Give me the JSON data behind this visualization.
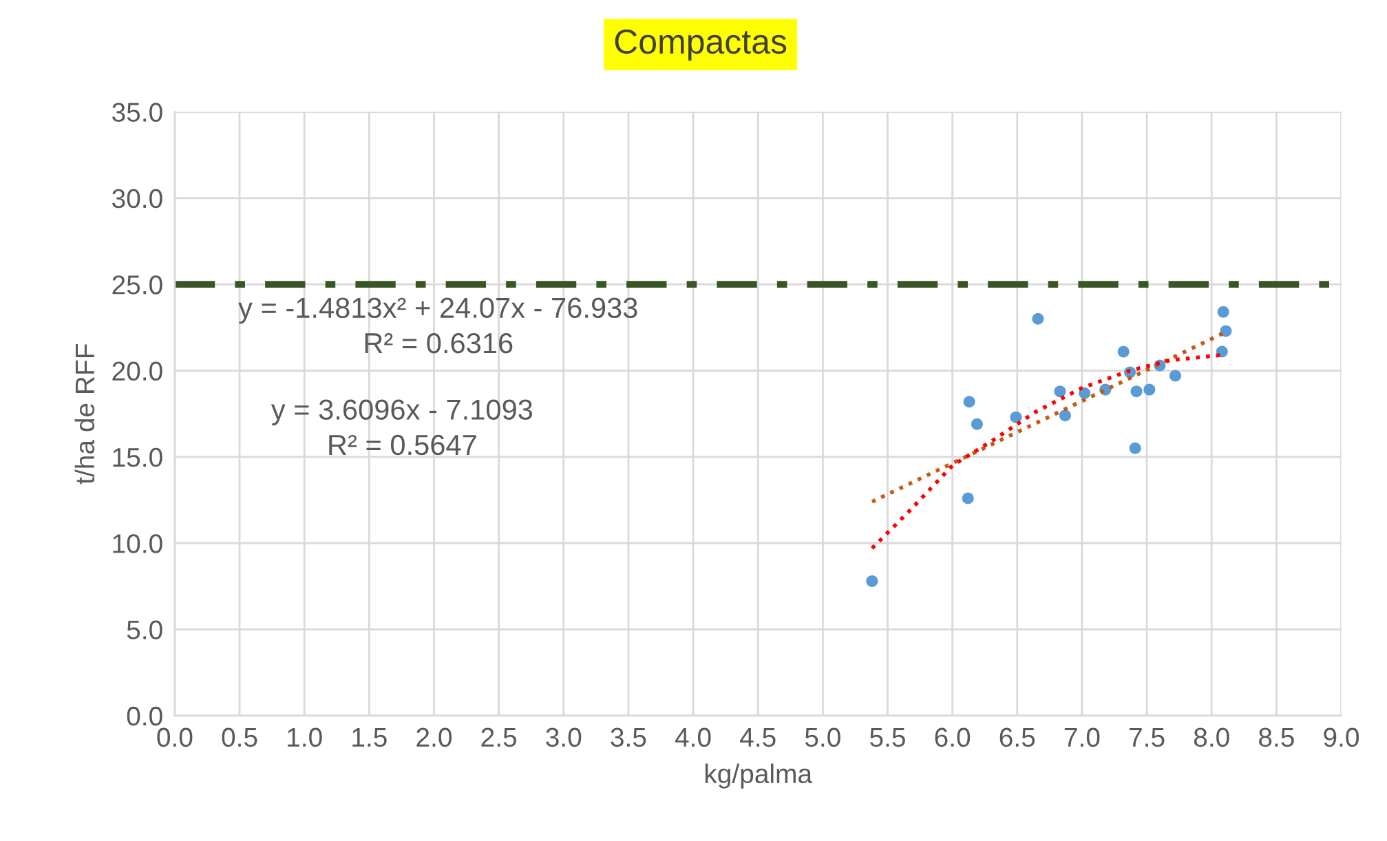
{
  "chart_data": {
    "type": "scatter",
    "title": "Compactas",
    "xlabel": "kg/palma",
    "ylabel": "t/ha de RFF",
    "xlim": [
      0,
      9
    ],
    "xticks": [
      {
        "value": 0,
        "label": "0.0"
      },
      {
        "value": 0.5,
        "label": "0.5"
      },
      {
        "value": 1,
        "label": "1.0"
      },
      {
        "value": 1.5,
        "label": "1.5"
      },
      {
        "value": 2,
        "label": "2.0"
      },
      {
        "value": 2.5,
        "label": "2.5"
      },
      {
        "value": 3,
        "label": "3.0"
      },
      {
        "value": 3.5,
        "label": "3.5"
      },
      {
        "value": 4,
        "label": "4.0"
      },
      {
        "value": 4.5,
        "label": "4.5"
      },
      {
        "value": 5,
        "label": "5.0"
      },
      {
        "value": 5.5,
        "label": "5.5"
      },
      {
        "value": 6,
        "label": "6.0"
      },
      {
        "value": 6.5,
        "label": "6.5"
      },
      {
        "value": 7,
        "label": "7.0"
      },
      {
        "value": 7.5,
        "label": "7.5"
      },
      {
        "value": 8,
        "label": "8.0"
      },
      {
        "value": 8.5,
        "label": "8.5"
      },
      {
        "value": 9,
        "label": "9.0"
      }
    ],
    "ylim": [
      0,
      35
    ],
    "yticks": [
      {
        "value": 0,
        "label": "0.0"
      },
      {
        "value": 5,
        "label": "5.0"
      },
      {
        "value": 10,
        "label": "10.0"
      },
      {
        "value": 15,
        "label": "15.0"
      },
      {
        "value": 20,
        "label": "20.0"
      },
      {
        "value": 25,
        "label": "25.0"
      },
      {
        "value": 30,
        "label": "30.0"
      },
      {
        "value": 35,
        "label": "35.0"
      }
    ],
    "grid": true,
    "series": [
      {
        "color": "#5b9bd5",
        "marker": "circle",
        "x": [
          5.38,
          6.13,
          6.19,
          6.12,
          6.49,
          6.66,
          6.83,
          6.87,
          7.02,
          7.18,
          7.32,
          7.37,
          7.42,
          7.41,
          7.52,
          7.6,
          7.72,
          8.09,
          8.11,
          8.08
        ],
        "values": [
          7.8,
          18.2,
          16.9,
          12.6,
          17.3,
          23.0,
          18.8,
          17.4,
          18.7,
          18.9,
          21.1,
          19.9,
          18.8,
          15.5,
          18.9,
          20.3,
          19.7,
          23.4,
          22.3,
          21.1
        ]
      },
      {
        "type": "line",
        "color": "#c55a11",
        "line_style": "dotted",
        "x": [
          5.38,
          8.1
        ],
        "values": [
          12.4,
          22.2
        ]
      },
      {
        "type": "line",
        "color": "#ff0000",
        "line_style": "dotted",
        "x": [
          5.38,
          5.66,
          6.0,
          6.3,
          6.64,
          7.0,
          7.37,
          7.68,
          8.07
        ],
        "values": [
          9.7,
          11.8,
          14.5,
          15.9,
          17.6,
          19.0,
          20.0,
          20.6,
          20.9
        ]
      }
    ],
    "ref_lines": [
      {
        "axis": "y",
        "value": 25,
        "color": "#375623",
        "line_style": "dashdot"
      }
    ],
    "annotations": [
      "y = -1.4813x² + 24.07x - 76.933",
      "R² = 0.6316",
      "y = 3.6096x - 7.1093",
      "R² = 0.5647"
    ]
  }
}
